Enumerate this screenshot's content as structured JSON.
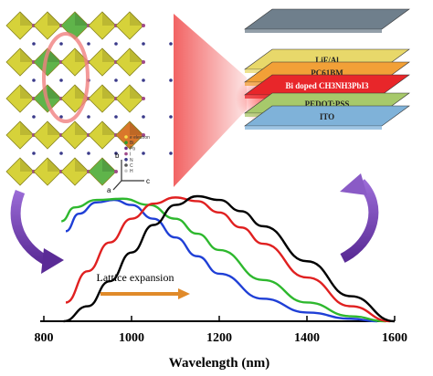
{
  "crystal": {
    "legend_items": [
      "e electron",
      "Bi",
      "Pb",
      "I",
      "N",
      "C",
      "H"
    ],
    "axis_labels": {
      "a": "a",
      "b": "b",
      "c": "c"
    }
  },
  "device_stack": {
    "layers": [
      {
        "label": "",
        "color": "#6f7f8c"
      },
      {
        "label": "LiF/Al",
        "color": "#e8d86a"
      },
      {
        "label": "PC61BM",
        "color": "#f2a037"
      },
      {
        "label": "Bi doped CH3NH3PbI3",
        "color": "#e8262a"
      },
      {
        "label": "PEDOT:PSS",
        "color": "#a7c96b"
      },
      {
        "label": "ITO",
        "color": "#7fb2d9"
      }
    ]
  },
  "chart_data": {
    "type": "line",
    "xlabel": "Wavelength (nm)",
    "ylabel": "",
    "xlim": [
      800,
      1600
    ],
    "x_ticks": [
      800,
      1000,
      1200,
      1400,
      1600
    ],
    "annotation": "Lattice expansion",
    "series": [
      {
        "color": "#1f3fd6",
        "x": [
          850,
          880,
          920,
          960,
          1000,
          1050,
          1100,
          1150,
          1200,
          1300,
          1400,
          1500,
          1560
        ],
        "y": [
          0.72,
          0.86,
          0.95,
          0.97,
          0.93,
          0.82,
          0.67,
          0.52,
          0.38,
          0.18,
          0.07,
          0.02,
          0.0
        ]
      },
      {
        "color": "#2eb82e",
        "x": [
          840,
          870,
          920,
          980,
          1040,
          1100,
          1150,
          1200,
          1300,
          1400,
          1500,
          1580
        ],
        "y": [
          0.8,
          0.91,
          0.97,
          0.98,
          0.93,
          0.82,
          0.7,
          0.57,
          0.33,
          0.15,
          0.04,
          0.0
        ]
      },
      {
        "color": "#e02020",
        "x": [
          850,
          900,
          950,
          1000,
          1050,
          1100,
          1150,
          1200,
          1250,
          1300,
          1400,
          1500,
          1590
        ],
        "y": [
          0.15,
          0.4,
          0.63,
          0.82,
          0.94,
          0.99,
          0.96,
          0.87,
          0.75,
          0.62,
          0.35,
          0.12,
          0.0
        ]
      },
      {
        "color": "#000000",
        "x": [
          845,
          900,
          950,
          1000,
          1050,
          1100,
          1150,
          1200,
          1250,
          1300,
          1400,
          1500,
          1600
        ],
        "y": [
          0.0,
          0.12,
          0.32,
          0.55,
          0.77,
          0.93,
          1.0,
          0.97,
          0.88,
          0.76,
          0.48,
          0.2,
          0.0
        ]
      }
    ]
  }
}
